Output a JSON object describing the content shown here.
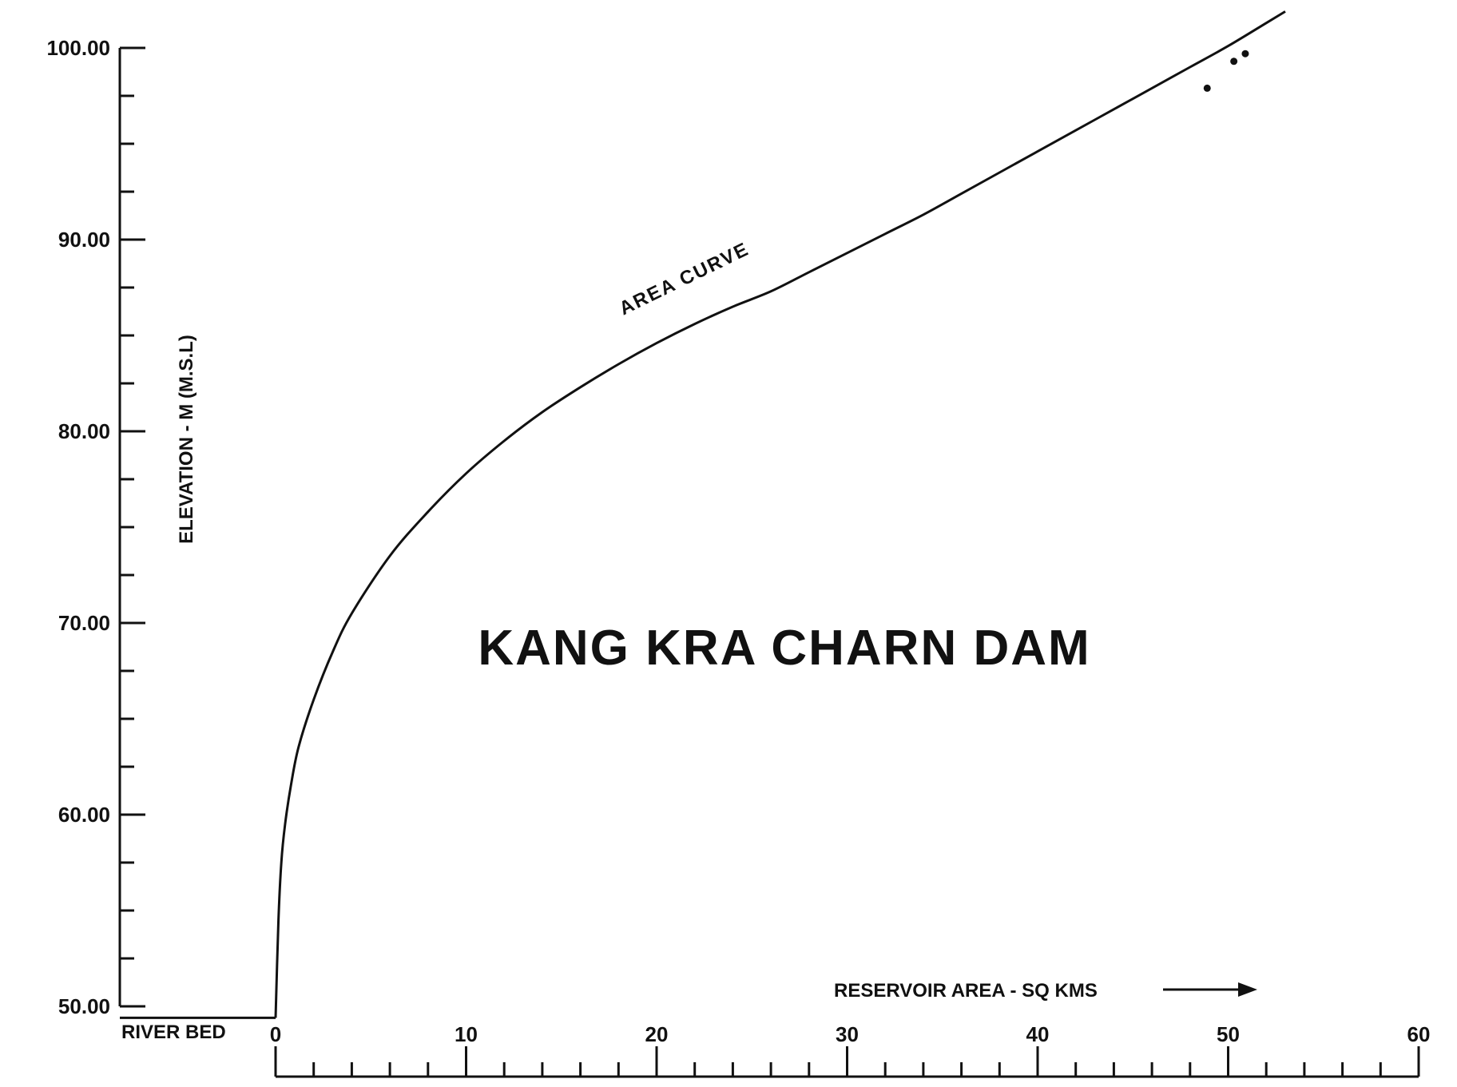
{
  "chart_data": {
    "type": "line",
    "title": "KANG KRA CHARN DAM",
    "xlabel": "RESERVOIR AREA - SQ KMS",
    "ylabel": "ELEVATION - M (M.S.L)",
    "xlim": [
      0,
      60
    ],
    "ylim": [
      50,
      100
    ],
    "x_ticks": [
      "0",
      "10",
      "20",
      "30",
      "40",
      "50",
      "60"
    ],
    "y_ticks": [
      "50.00",
      "60.00",
      "70.00",
      "80.00",
      "90.00",
      "100.00"
    ],
    "baseline_label": "RIVER BED",
    "river_bed_elevation": 49.4,
    "curve_label": "AREA CURVE",
    "grid": false,
    "legend": "none",
    "series": [
      {
        "name": "AREA CURVE",
        "x": [
          0,
          0.15,
          0.3,
          0.5,
          0.8,
          1.2,
          2,
          3,
          4,
          6,
          8,
          10,
          12,
          14,
          16,
          18,
          20,
          22,
          24,
          26,
          28,
          30,
          32,
          34,
          36,
          38,
          40,
          42,
          44,
          46,
          48,
          50,
          52,
          53
        ],
        "y": [
          49.4,
          54.5,
          57.5,
          59.5,
          61.5,
          63.5,
          66,
          68.5,
          70.5,
          73.5,
          75.8,
          77.8,
          79.5,
          81,
          82.3,
          83.5,
          84.6,
          85.6,
          86.5,
          87.3,
          88.3,
          89.3,
          90.3,
          91.3,
          92.4,
          93.5,
          94.6,
          95.7,
          96.8,
          97.9,
          99,
          100.1,
          101.3,
          101.9
        ]
      },
      {
        "name": "",
        "type": "scatter",
        "x": [
          48.9,
          50.3,
          50.9
        ],
        "y": [
          97.9,
          99.3,
          99.7
        ]
      }
    ]
  }
}
